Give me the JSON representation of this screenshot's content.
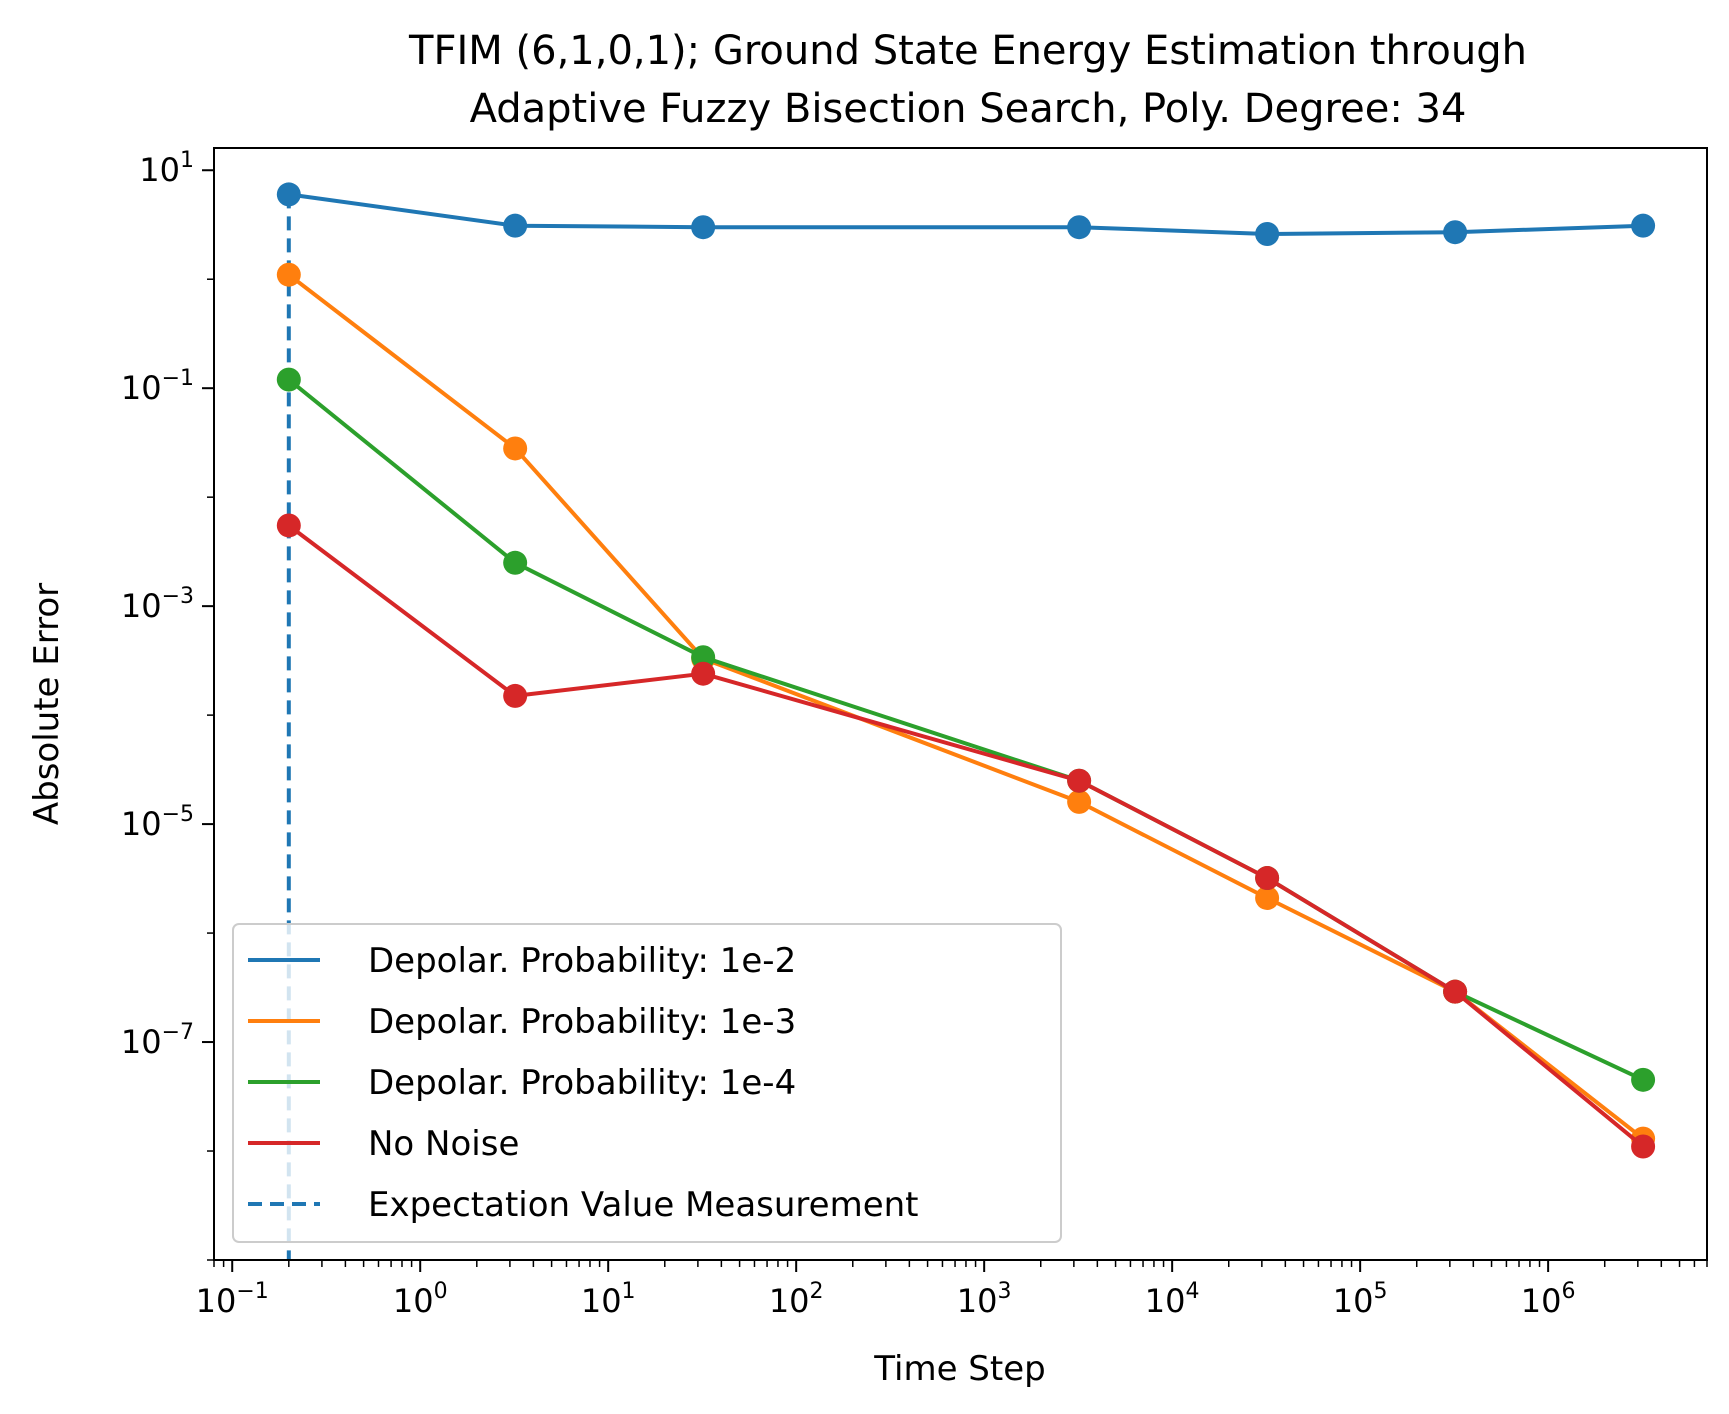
{
  "chart_data": {
    "type": "line",
    "title_lines": [
      "TFIM (6,1,0,1); Ground State Energy Estimation through",
      "Adaptive Fuzzy Bisection Search, Poly. Degree: 34"
    ],
    "xlabel": "Time Step",
    "ylabel": "Absolute Error",
    "xscale": "log",
    "yscale": "log",
    "xlim": [
      0.08,
      7000000
    ],
    "ylim": [
      1e-09,
      16
    ],
    "x_ticks": [
      {
        "base": "10",
        "exp": "−1",
        "value": 0.1
      },
      {
        "base": "10",
        "exp": "0",
        "value": 1
      },
      {
        "base": "10",
        "exp": "1",
        "value": 10
      },
      {
        "base": "10",
        "exp": "2",
        "value": 100
      },
      {
        "base": "10",
        "exp": "3",
        "value": 1000
      },
      {
        "base": "10",
        "exp": "4",
        "value": 10000
      },
      {
        "base": "10",
        "exp": "5",
        "value": 100000
      },
      {
        "base": "10",
        "exp": "6",
        "value": 1000000
      }
    ],
    "y_ticks": [
      {
        "base": "10",
        "exp": "1",
        "value": 10
      },
      {
        "base": "10",
        "exp": "−1",
        "value": 0.1
      },
      {
        "base": "10",
        "exp": "−3",
        "value": 0.001
      },
      {
        "base": "10",
        "exp": "−5",
        "value": 1e-05
      },
      {
        "base": "10",
        "exp": "−7",
        "value": 1e-07
      }
    ],
    "x": [
      0.2,
      3.2,
      32,
      3200,
      32000,
      320000,
      3200000
    ],
    "series": [
      {
        "name": "Depolar. Probability: 1e-2",
        "color": "#1f77b4",
        "values": [
          6.0,
          3.1,
          3.0,
          3.0,
          2.6,
          2.7,
          3.1
        ]
      },
      {
        "name": "Depolar. Probability: 1e-3",
        "color": "#ff7f0e",
        "values": [
          1.1,
          0.028,
          0.00033,
          1.6e-05,
          2.1e-06,
          2.9e-07,
          1.3e-08
        ]
      },
      {
        "name": "Depolar. Probability: 1e-4",
        "color": "#2ca02c",
        "values": [
          0.12,
          0.0025,
          0.00034,
          2.5e-05,
          3.2e-06,
          2.9e-07,
          4.5e-08
        ]
      },
      {
        "name": "No Noise",
        "color": "#d62728",
        "values": [
          0.0055,
          0.00015,
          0.00024,
          2.5e-05,
          3.2e-06,
          2.9e-07,
          1.1e-08
        ]
      }
    ],
    "vline": {
      "name": "Expectation Value Measurement",
      "x": 0.2,
      "color": "#1f77b4",
      "style": "dashed"
    },
    "legend_position": "lower-left",
    "grid": false
  }
}
